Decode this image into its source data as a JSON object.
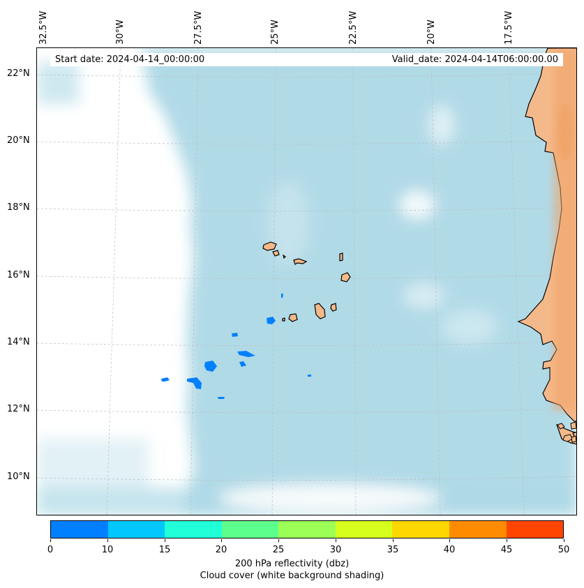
{
  "map": {
    "lon_labels": [
      "32.5°W",
      "30°W",
      "27.5°W",
      "25°W",
      "22.5°W",
      "20°W",
      "17.5°W"
    ],
    "lat_labels": [
      "22°N",
      "20°N",
      "18°N",
      "16°N",
      "14°N",
      "12°N",
      "10°N"
    ],
    "start_date": "Start date: 2024-04-14_00:00:00",
    "valid_date": "Valid_date: 2024-04-14T06:00:00.00",
    "colors": {
      "land": "#f4b98a",
      "land_inland": "#f0a266",
      "cloud": "#add8e6",
      "clear": "#ffffff",
      "gridline": "#bbbbbb"
    },
    "reflectivity_cells_color": "#0080ff"
  },
  "colorbar": {
    "ticks": [
      "0",
      "10",
      "15",
      "20",
      "25",
      "30",
      "35",
      "40",
      "45",
      "50"
    ],
    "colors": [
      "#0080ff",
      "#00c8ff",
      "#21ffd8",
      "#5dff8c",
      "#9bff55",
      "#d6ff1d",
      "#ffd700",
      "#ff8c00",
      "#ff4500"
    ],
    "label_line1": "200 hPa reflectivity (dbz)",
    "label_line2": "Cloud cover (white background shading)"
  }
}
